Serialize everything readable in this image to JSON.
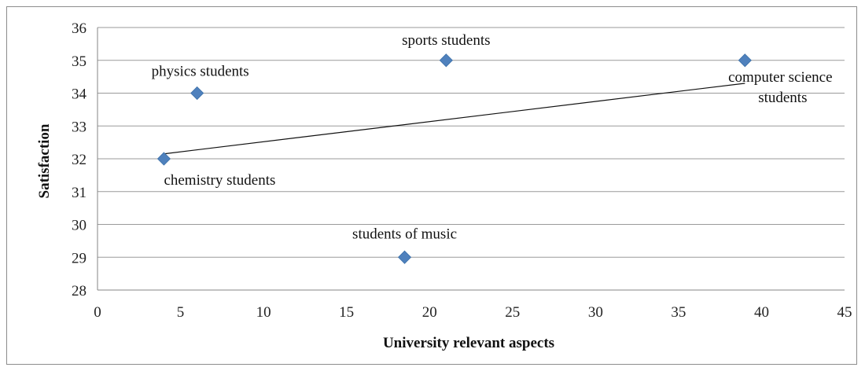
{
  "chart_data": {
    "type": "scatter",
    "title": "",
    "xlabel": "University relevant aspects",
    "ylabel": "Satisfaction",
    "xlim": [
      0,
      45
    ],
    "ylim": [
      28,
      36
    ],
    "xticks": [
      0,
      5,
      10,
      15,
      20,
      25,
      30,
      35,
      40,
      45
    ],
    "yticks": [
      28,
      29,
      30,
      31,
      32,
      33,
      34,
      35,
      36
    ],
    "grid": "horizontal",
    "legend": "none",
    "marker_color": "#4f81bd",
    "points": [
      {
        "label": [
          "physics students"
        ],
        "x": 6,
        "y": 34
      },
      {
        "label": [
          "sports students"
        ],
        "x": 21,
        "y": 35
      },
      {
        "label": [
          "computer science",
          "students"
        ],
        "x": 39,
        "y": 35
      },
      {
        "label": [
          "chemistry students"
        ],
        "x": 4,
        "y": 32
      },
      {
        "label": [
          "students of music"
        ],
        "x": 18.5,
        "y": 29
      }
    ],
    "trendline": {
      "type": "linear",
      "x": [
        4,
        39
      ],
      "y": [
        32.15,
        34.3
      ],
      "color": "#111111"
    }
  }
}
